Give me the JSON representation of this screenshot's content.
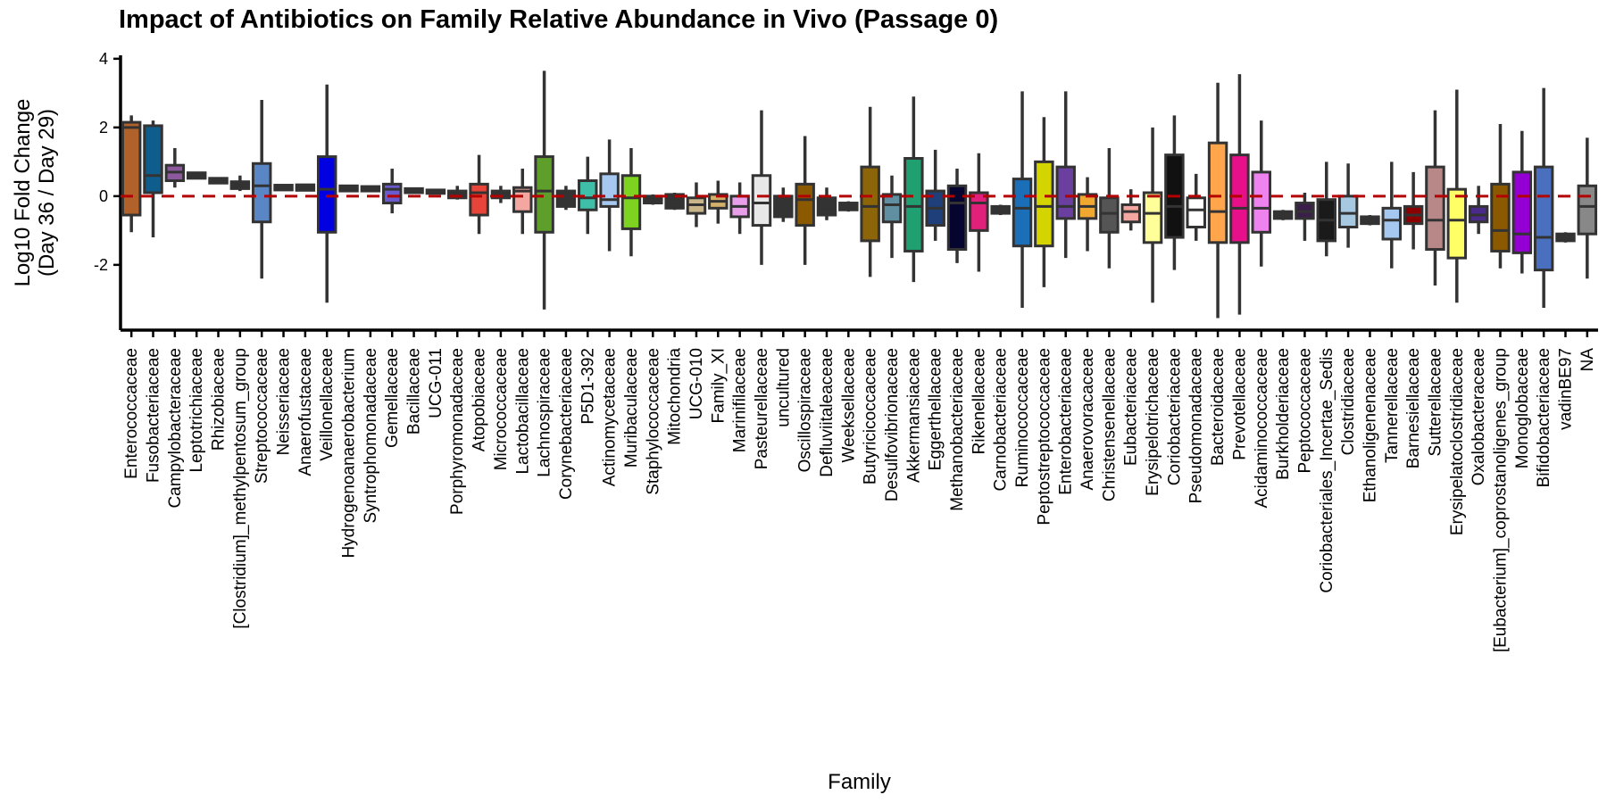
{
  "chart_data": {
    "type": "box",
    "title": "Impact of Antibiotics on Family Relative Abundance in Vivo (Passage 0)",
    "xlabel": "Family",
    "ylabel": [
      "Log10 Fold Change",
      "(Day 36 / Day 29)"
    ],
    "ylim": [
      -3.9,
      4.1
    ],
    "yticks": [
      -2,
      0,
      2,
      4
    ],
    "reference_line": {
      "y": 0,
      "style": "dashed",
      "color": "#b30000"
    },
    "grid": false,
    "categories": [
      {
        "name": "Enterococcaceae",
        "color": "#b0622a",
        "q1": -0.55,
        "median": 2.0,
        "q3": 2.15,
        "lo": -1.05,
        "hi": 2.35
      },
      {
        "name": "Fusobacteriaceae",
        "color": "#0e5d8c",
        "q1": 0.1,
        "median": 0.6,
        "q3": 2.05,
        "lo": -1.2,
        "hi": 2.2
      },
      {
        "name": "Campylobacteraceae",
        "color": "#8c5a9c",
        "q1": 0.45,
        "median": 0.7,
        "q3": 0.9,
        "lo": 0.25,
        "hi": 1.4
      },
      {
        "name": "Leptotrichiaceae",
        "color": "#333333",
        "q1": 0.52,
        "median": 0.6,
        "q3": 0.68,
        "lo": 0.5,
        "hi": 0.7
      },
      {
        "name": "Rhizobiaceae",
        "color": "#333333",
        "q1": 0.38,
        "median": 0.45,
        "q3": 0.52,
        "lo": 0.35,
        "hi": 0.55
      },
      {
        "name": "[Clostridium]_methylpentosum_group",
        "color": "#333333",
        "q1": 0.22,
        "median": 0.32,
        "q3": 0.42,
        "lo": 0.15,
        "hi": 0.6
      },
      {
        "name": "Streptococcaceae",
        "color": "#5b86c6",
        "q1": -0.75,
        "median": 0.3,
        "q3": 0.95,
        "lo": -2.4,
        "hi": 2.8
      },
      {
        "name": "Neisseriaceae",
        "color": "#333333",
        "q1": 0.18,
        "median": 0.25,
        "q3": 0.32,
        "lo": 0.15,
        "hi": 0.35
      },
      {
        "name": "Anaerofustaceae",
        "color": "#333333",
        "q1": 0.17,
        "median": 0.25,
        "q3": 0.33,
        "lo": 0.15,
        "hi": 0.35
      },
      {
        "name": "Veillonellaceae",
        "color": "#0000e0",
        "q1": -1.05,
        "median": 0.2,
        "q3": 1.15,
        "lo": -3.1,
        "hi": 3.25
      },
      {
        "name": "Hydrogenoanaerobacterium",
        "color": "#333333",
        "q1": 0.15,
        "median": 0.22,
        "q3": 0.3,
        "lo": 0.12,
        "hi": 0.32
      },
      {
        "name": "Syntrophomonadaceae",
        "color": "#333333",
        "q1": 0.15,
        "median": 0.2,
        "q3": 0.28,
        "lo": 0.12,
        "hi": 0.3
      },
      {
        "name": "Gemellaceae",
        "color": "#6a5acd",
        "q1": -0.2,
        "median": 0.2,
        "q3": 0.35,
        "lo": -0.5,
        "hi": 0.8
      },
      {
        "name": "Bacillaceae",
        "color": "#333333",
        "q1": 0.1,
        "median": 0.15,
        "q3": 0.22,
        "lo": 0.08,
        "hi": 0.25
      },
      {
        "name": "UCG-011",
        "color": "#333333",
        "q1": 0.08,
        "median": 0.12,
        "q3": 0.18,
        "lo": 0.05,
        "hi": 0.2
      },
      {
        "name": "Porphyromonadaceae",
        "color": "#333333",
        "q1": -0.05,
        "median": 0.05,
        "q3": 0.15,
        "lo": -0.1,
        "hi": 0.3
      },
      {
        "name": "Atopobiaceae",
        "color": "#e8443a",
        "q1": -0.55,
        "median": 0.1,
        "q3": 0.35,
        "lo": -1.1,
        "hi": 1.2
      },
      {
        "name": "Micrococcaceae",
        "color": "#333333",
        "q1": -0.05,
        "median": 0.05,
        "q3": 0.15,
        "lo": -0.2,
        "hi": 0.3
      },
      {
        "name": "Lactobacillaceae",
        "color": "#f4a6a0",
        "q1": -0.45,
        "median": 0.15,
        "q3": 0.25,
        "lo": -1.1,
        "hi": 0.8
      },
      {
        "name": "Lachnospiraceae",
        "color": "#5e9e2a",
        "q1": -1.05,
        "median": 0.15,
        "q3": 1.15,
        "lo": -3.3,
        "hi": 3.65
      },
      {
        "name": "Corynebacteriaceae",
        "color": "#333333",
        "q1": -0.3,
        "median": -0.05,
        "q3": 0.15,
        "lo": -0.4,
        "hi": 0.3
      },
      {
        "name": "P5D1-392",
        "color": "#3fbfa8",
        "q1": -0.4,
        "median": -0.05,
        "q3": 0.45,
        "lo": -1.1,
        "hi": 1.15
      },
      {
        "name": "Actinomycetaceae",
        "color": "#a6c8f0",
        "q1": -0.3,
        "median": -0.1,
        "q3": 0.65,
        "lo": -1.6,
        "hi": 1.65
      },
      {
        "name": "Muribaculaceae",
        "color": "#7ed321",
        "q1": -0.95,
        "median": -0.05,
        "q3": 0.6,
        "lo": -1.75,
        "hi": 1.4
      },
      {
        "name": "Staphylococcaceae",
        "color": "#333333",
        "q1": -0.2,
        "median": -0.1,
        "q3": 0.0,
        "lo": -0.25,
        "hi": 0.05
      },
      {
        "name": "Mitochondria",
        "color": "#333333",
        "q1": -0.35,
        "median": -0.15,
        "q3": 0.05,
        "lo": -0.4,
        "hi": 0.1
      },
      {
        "name": "UCG-010",
        "color": "#c9b58a",
        "q1": -0.5,
        "median": -0.25,
        "q3": -0.05,
        "lo": -0.9,
        "hi": 0.4
      },
      {
        "name": "Family_XI",
        "color": "#d4b16a",
        "q1": -0.35,
        "median": -0.15,
        "q3": 0.05,
        "lo": -0.8,
        "hi": 0.45
      },
      {
        "name": "Marinifilaceae",
        "color": "#e89ee8",
        "q1": -0.6,
        "median": -0.3,
        "q3": 0.0,
        "lo": -1.1,
        "hi": 0.4
      },
      {
        "name": "Pasteurellaceae",
        "color": "#e8e8e8",
        "q1": -0.85,
        "median": -0.2,
        "q3": 0.6,
        "lo": -2.0,
        "hi": 2.5
      },
      {
        "name": "uncultured",
        "color": "#333333",
        "q1": -0.6,
        "median": -0.35,
        "q3": 0.0,
        "lo": -0.75,
        "hi": 0.25
      },
      {
        "name": "Oscillospiraceae",
        "color": "#8b5a00",
        "q1": -0.85,
        "median": -0.1,
        "q3": 0.35,
        "lo": -2.0,
        "hi": 1.75
      },
      {
        "name": "Defluviitaleaceae",
        "color": "#333333",
        "q1": -0.55,
        "median": -0.35,
        "q3": -0.05,
        "lo": -0.7,
        "hi": 0.25
      },
      {
        "name": "Weeksellaceae",
        "color": "#333333",
        "q1": -0.4,
        "median": -0.3,
        "q3": -0.2,
        "lo": -0.45,
        "hi": -0.15
      },
      {
        "name": "Butyricicoccaceae",
        "color": "#8b6508",
        "q1": -1.3,
        "median": -0.3,
        "q3": 0.85,
        "lo": -2.35,
        "hi": 2.6
      },
      {
        "name": "Desulfovibrionaceae",
        "color": "#5f8fa0",
        "q1": -0.75,
        "median": -0.25,
        "q3": 0.05,
        "lo": -1.8,
        "hi": 0.6
      },
      {
        "name": "Akkermansiaceae",
        "color": "#20a070",
        "q1": -1.6,
        "median": -0.3,
        "q3": 1.1,
        "lo": -2.5,
        "hi": 2.9
      },
      {
        "name": "Eggerthellaceae",
        "color": "#1e3f7a",
        "q1": -0.85,
        "median": -0.35,
        "q3": 0.15,
        "lo": -1.3,
        "hi": 1.35
      },
      {
        "name": "Methanobacteriaceae",
        "color": "#050530",
        "q1": -1.55,
        "median": -0.2,
        "q3": 0.3,
        "lo": -1.95,
        "hi": 0.8
      },
      {
        "name": "Rikenellaceae",
        "color": "#e0207a",
        "q1": -1.0,
        "median": -0.2,
        "q3": 0.1,
        "lo": -2.2,
        "hi": 1.25
      },
      {
        "name": "Carnobacteriaceae",
        "color": "#333333",
        "q1": -0.5,
        "median": -0.4,
        "q3": -0.3,
        "lo": -0.55,
        "hi": -0.25
      },
      {
        "name": "Ruminococcaceae",
        "color": "#1a6fb8",
        "q1": -1.45,
        "median": -0.35,
        "q3": 0.5,
        "lo": -3.25,
        "hi": 3.05
      },
      {
        "name": "Peptostreptococcaceae",
        "color": "#d4d400",
        "q1": -1.45,
        "median": -0.3,
        "q3": 1.0,
        "lo": -2.65,
        "hi": 2.3
      },
      {
        "name": "Enterobacteriaceae",
        "color": "#6a3fa0",
        "q1": -0.65,
        "median": -0.3,
        "q3": 0.85,
        "lo": -1.8,
        "hi": 3.05
      },
      {
        "name": "Anaerovoracaceae",
        "color": "#f0a830",
        "q1": -0.65,
        "median": -0.3,
        "q3": 0.05,
        "lo": -1.6,
        "hi": 0.55
      },
      {
        "name": "Christensenellaceae",
        "color": "#555555",
        "q1": -1.05,
        "median": -0.5,
        "q3": -0.05,
        "lo": -2.1,
        "hi": 1.4
      },
      {
        "name": "Eubacteriaceae",
        "color": "#f4a6a0",
        "q1": -0.75,
        "median": -0.45,
        "q3": -0.25,
        "lo": -1.0,
        "hi": 0.2
      },
      {
        "name": "Erysipelotrichaceae",
        "color": "#ffff99",
        "q1": -1.35,
        "median": -0.5,
        "q3": 0.1,
        "lo": -3.1,
        "hi": 2.0
      },
      {
        "name": "Coriobacteriaceae",
        "color": "#111111",
        "q1": -1.2,
        "median": -0.3,
        "q3": 1.2,
        "lo": -2.15,
        "hi": 2.35
      },
      {
        "name": "Pseudomonadaceae",
        "color": "#ffffff",
        "q1": -0.9,
        "median": -0.4,
        "q3": -0.05,
        "lo": -1.3,
        "hi": 0.65
      },
      {
        "name": "Bacteroidaceae",
        "color": "#ffa64d",
        "q1": -1.35,
        "median": -0.45,
        "q3": 1.55,
        "lo": -3.55,
        "hi": 3.3
      },
      {
        "name": "Prevotellaceae",
        "color": "#e8108a",
        "q1": -1.35,
        "median": -0.35,
        "q3": 1.2,
        "lo": -3.45,
        "hi": 3.55
      },
      {
        "name": "Acidaminococcaceae",
        "color": "#ee82ee",
        "q1": -1.05,
        "median": -0.35,
        "q3": 0.7,
        "lo": -2.05,
        "hi": 2.2
      },
      {
        "name": "Burkholderiaceae",
        "color": "#333333",
        "q1": -0.65,
        "median": -0.55,
        "q3": -0.45,
        "lo": -0.7,
        "hi": -0.4
      },
      {
        "name": "Peptococcaceae",
        "color": "#3a1f4a",
        "q1": -0.65,
        "median": -0.45,
        "q3": -0.2,
        "lo": -1.3,
        "hi": 0.1
      },
      {
        "name": "Coriobacteriales_Incertae_Sedis",
        "color": "#1a1a1a",
        "q1": -1.3,
        "median": -0.7,
        "q3": -0.1,
        "lo": -1.75,
        "hi": 1.0
      },
      {
        "name": "Clostridiaceae",
        "color": "#a6c8e0",
        "q1": -0.9,
        "median": -0.5,
        "q3": 0.0,
        "lo": -1.5,
        "hi": 0.95
      },
      {
        "name": "Ethanoligenenaceae",
        "color": "#333333",
        "q1": -0.8,
        "median": -0.7,
        "q3": -0.6,
        "lo": -0.85,
        "hi": -0.55
      },
      {
        "name": "Tannerellaceae",
        "color": "#a6c8f0",
        "q1": -1.25,
        "median": -0.7,
        "q3": -0.35,
        "lo": -2.1,
        "hi": 1.0
      },
      {
        "name": "Barnesiellaceae",
        "color": "#8b0000",
        "q1": -0.8,
        "median": -0.55,
        "q3": -0.3,
        "lo": -1.55,
        "hi": 0.7
      },
      {
        "name": "Sutterellaceae",
        "color": "#b88888",
        "q1": -1.55,
        "median": -0.7,
        "q3": 0.85,
        "lo": -2.6,
        "hi": 2.5
      },
      {
        "name": "Erysipelatoclostridiaceae",
        "color": "#ffff66",
        "q1": -1.8,
        "median": -0.7,
        "q3": 0.2,
        "lo": -3.1,
        "hi": 3.1
      },
      {
        "name": "Oxalobacteraceae",
        "color": "#4a2a8a",
        "q1": -0.75,
        "median": -0.55,
        "q3": -0.3,
        "lo": -1.1,
        "hi": 0.3
      },
      {
        "name": "[Eubacterium]_coprostanoligenes_group",
        "color": "#8b5a00",
        "q1": -1.6,
        "median": -1.0,
        "q3": 0.35,
        "lo": -2.1,
        "hi": 2.1
      },
      {
        "name": "Monoglobaceae",
        "color": "#9400d3",
        "q1": -1.65,
        "median": -1.1,
        "q3": 0.7,
        "lo": -2.25,
        "hi": 1.9
      },
      {
        "name": "Bifidobacteriaceae",
        "color": "#4a6fbe",
        "q1": -2.15,
        "median": -1.2,
        "q3": 0.85,
        "lo": -3.25,
        "hi": 3.15
      },
      {
        "name": "vadinBE97",
        "color": "#333333",
        "q1": -1.3,
        "median": -1.2,
        "q3": -1.1,
        "lo": -1.35,
        "hi": -1.05
      },
      {
        "name": "NA",
        "color": "#888888",
        "q1": -1.1,
        "median": -0.3,
        "q3": 0.3,
        "lo": -2.4,
        "hi": 1.7
      }
    ]
  }
}
